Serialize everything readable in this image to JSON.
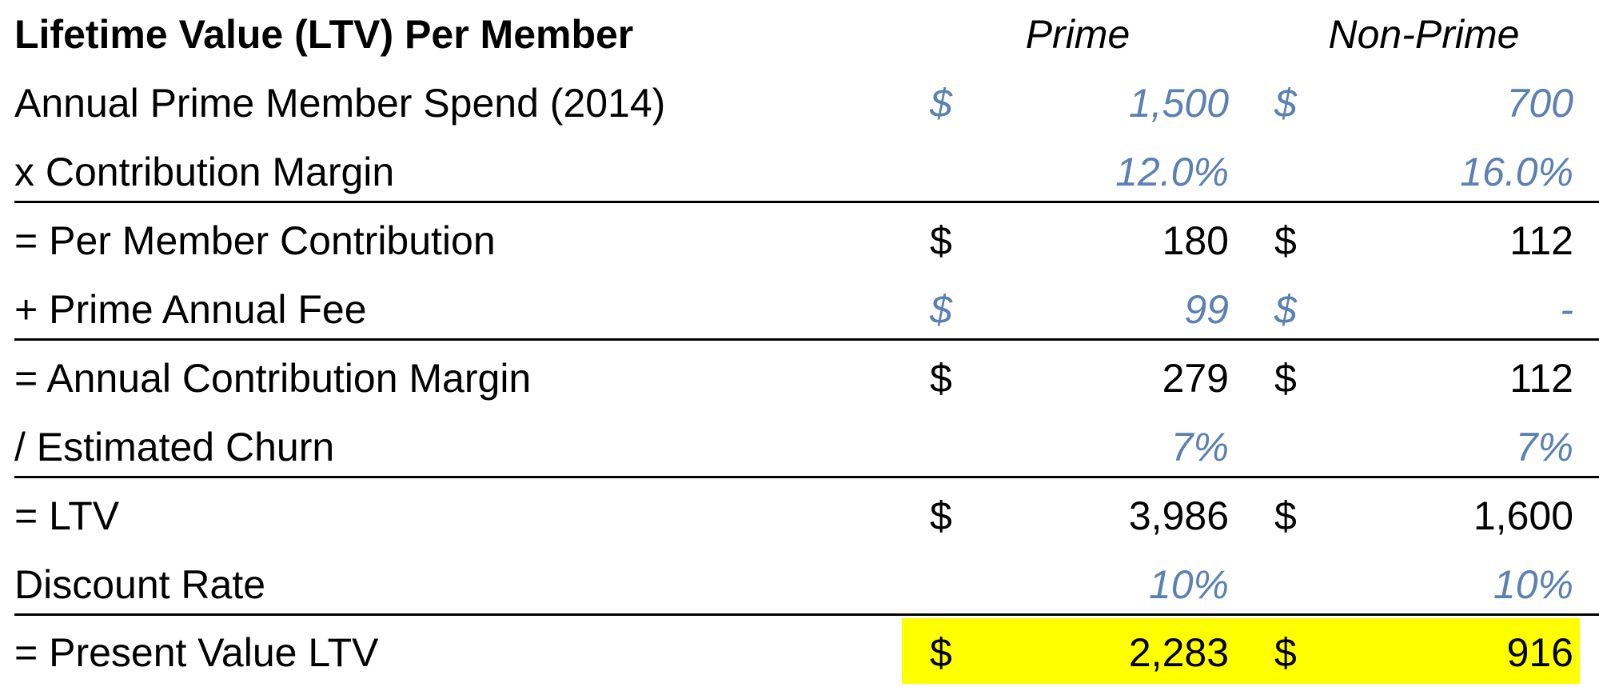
{
  "sheet": {
    "title": "Lifetime Value (LTV) Per Member",
    "columns": [
      "Prime",
      "Non-Prime"
    ],
    "rows": [
      {
        "label": "Annual Prime Member Spend (2014)",
        "prime_currency": "$",
        "prime_value": "1,500",
        "nonprime_currency": "$",
        "nonprime_value": "700"
      },
      {
        "label": "x Contribution Margin",
        "prime_currency": "",
        "prime_value": "12.0%",
        "nonprime_currency": "",
        "nonprime_value": "16.0%"
      },
      {
        "label": "= Per Member Contribution",
        "prime_currency": "$",
        "prime_value": "180",
        "nonprime_currency": "$",
        "nonprime_value": "112"
      },
      {
        "label": "+ Prime Annual Fee",
        "prime_currency": "$",
        "prime_value": "99",
        "nonprime_currency": "$",
        "nonprime_value": "-"
      },
      {
        "label": "= Annual Contribution Margin",
        "prime_currency": "$",
        "prime_value": "279",
        "nonprime_currency": "$",
        "nonprime_value": "112"
      },
      {
        "label": "/ Estimated Churn",
        "prime_currency": "",
        "prime_value": "7%",
        "nonprime_currency": "",
        "nonprime_value": "7%"
      },
      {
        "label": "= LTV",
        "prime_currency": "$",
        "prime_value": "3,986",
        "nonprime_currency": "$",
        "nonprime_value": "1,600"
      },
      {
        "label": "Discount Rate",
        "prime_currency": "",
        "prime_value": "10%",
        "nonprime_currency": "",
        "nonprime_value": "10%"
      },
      {
        "label": "= Present Value LTV",
        "prime_currency": "$",
        "prime_value": "2,283",
        "nonprime_currency": "$",
        "nonprime_value": "916"
      }
    ],
    "colors": {
      "input_text": "#5b80b2",
      "highlight": "#ffff00",
      "text": "#000000"
    }
  }
}
